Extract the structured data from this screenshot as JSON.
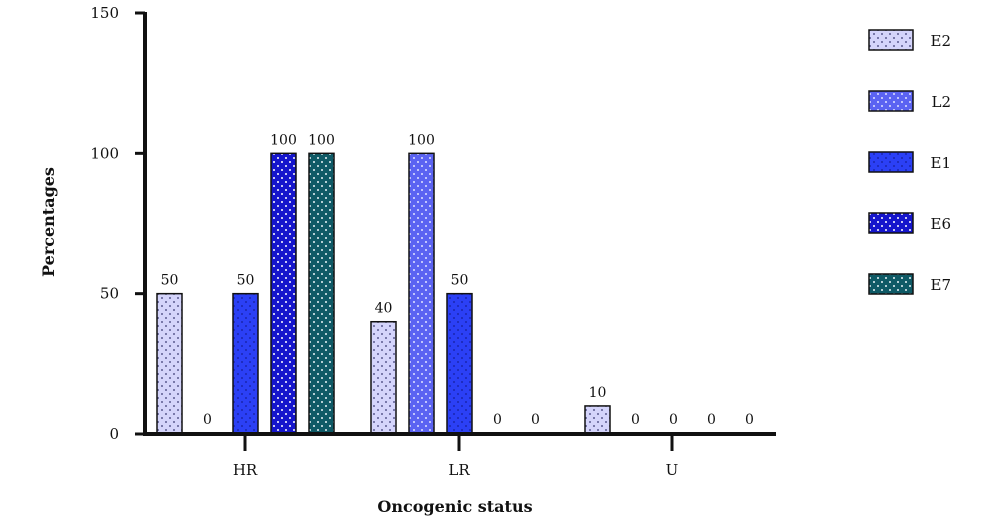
{
  "chart_data": {
    "type": "bar",
    "title": "",
    "xlabel": "Oncogenic status",
    "ylabel": "Percentages",
    "ylim": [
      0,
      150
    ],
    "yticks": [
      0,
      50,
      100,
      150
    ],
    "categories": [
      "HR",
      "LR",
      "U"
    ],
    "series": [
      {
        "name": "E2",
        "values": [
          50,
          40,
          10
        ],
        "color": "#d4d4fb",
        "dot_color": "#5a5a90"
      },
      {
        "name": "L2",
        "values": [
          0,
          100,
          0
        ],
        "color": "#5b63f2",
        "dot_color": "#e0e4ff"
      },
      {
        "name": "E1",
        "values": [
          50,
          50,
          0
        ],
        "color": "#2b40f5",
        "dot_color": "#1a26b0"
      },
      {
        "name": "E6",
        "values": [
          100,
          0,
          0
        ],
        "color": "#1515cc",
        "dot_color": "#ffffff"
      },
      {
        "name": "E7",
        "values": [
          100,
          0,
          0
        ],
        "color": "#0f5a66",
        "dot_color": "#e8f4f6"
      }
    ],
    "data_labels": [
      [
        "50",
        "0",
        "50",
        "100",
        "100"
      ],
      [
        "40",
        "100",
        "50",
        "0",
        "0"
      ],
      [
        "10",
        "0",
        "0",
        "0",
        "0"
      ]
    ],
    "legend_position": "right",
    "grid": false
  }
}
